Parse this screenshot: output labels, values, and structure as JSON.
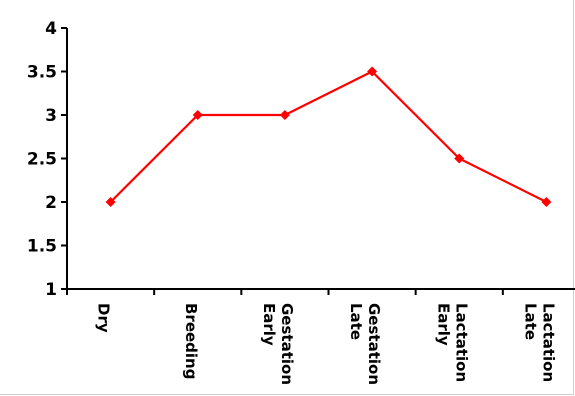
{
  "chart_data": {
    "type": "line",
    "categories": [
      "Dry",
      "Breeding",
      "Early\nGestation",
      "Late\nGestation",
      "Early\nLactation",
      "Late\nLactation"
    ],
    "series": [
      {
        "values": [
          2,
          3,
          3,
          3.5,
          2.5,
          2
        ]
      }
    ],
    "title": "",
    "xlabel": "",
    "ylabel": "",
    "ylim": [
      1,
      4
    ],
    "yticks": [
      "1",
      "1.5",
      "2",
      "2.5",
      "3",
      "3.5",
      "4"
    ],
    "grid": false,
    "legend": "none",
    "colors": {
      "series": "#ff0000",
      "axis": "#000000"
    }
  }
}
